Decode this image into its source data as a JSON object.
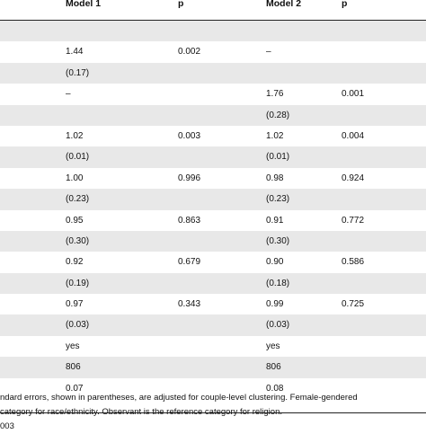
{
  "table": {
    "headers": [
      "Model 1",
      "p",
      "Model 2",
      "p"
    ],
    "rows": [
      [
        "",
        "",
        "",
        ""
      ],
      [
        "1.44",
        "0.002",
        "–",
        ""
      ],
      [
        "(0.17)",
        "",
        "",
        ""
      ],
      [
        "–",
        "",
        "1.76",
        "0.001"
      ],
      [
        "",
        "",
        "(0.28)",
        ""
      ],
      [
        "1.02",
        "0.003",
        "1.02",
        "0.004"
      ],
      [
        "(0.01)",
        "",
        "(0.01)",
        ""
      ],
      [
        "1.00",
        "0.996",
        "0.98",
        "0.924"
      ],
      [
        "(0.23)",
        "",
        "(0.23)",
        ""
      ],
      [
        "0.95",
        "0.863",
        "0.91",
        "0.772"
      ],
      [
        "(0.30)",
        "",
        "(0.30)",
        ""
      ],
      [
        "0.92",
        "0.679",
        "0.90",
        "0.586"
      ],
      [
        "(0.19)",
        "",
        "(0.18)",
        ""
      ],
      [
        "0.97",
        "0.343",
        "0.99",
        "0.725"
      ],
      [
        "(0.03)",
        "",
        "(0.03)",
        ""
      ],
      [
        "yes",
        "",
        "yes",
        ""
      ],
      [
        "806",
        "",
        "806",
        ""
      ],
      [
        "0.07",
        "",
        "0.08",
        ""
      ]
    ]
  },
  "notes": [
    "ndard errors, shown in parentheses, are adjusted for couple-level clustering. Female-gendered",
    "category for race/ethnicity. Observant is the reference category for religion.",
    "003"
  ]
}
